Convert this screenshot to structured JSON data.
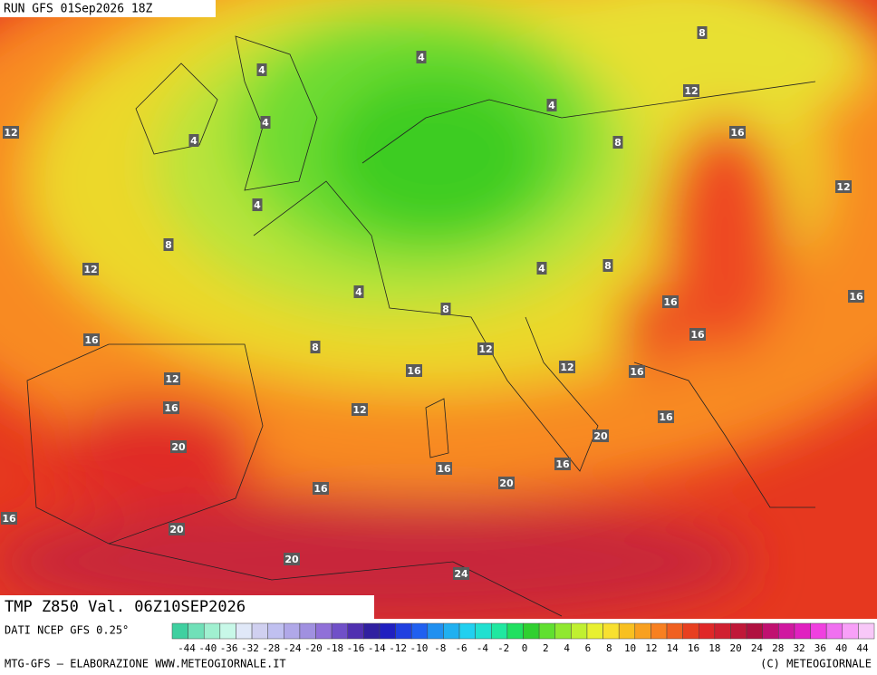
{
  "header": {
    "run": "RUN GFS 01Sep2026 18Z",
    "title": "TMP Z850 Val. 06Z10SEP2026"
  },
  "legend": {
    "source": "DATI NCEP GFS 0.25°",
    "labels": [
      "-44",
      "-40",
      "-36",
      "-32",
      "-28",
      "-24",
      "-20",
      "-18",
      "-16",
      "-14",
      "-12",
      "-10",
      "-8",
      "-6",
      "-4",
      "-2",
      "0",
      "2",
      "4",
      "6",
      "8",
      "10",
      "12",
      "14",
      "16",
      "18",
      "20",
      "24",
      "28",
      "32",
      "36",
      "40",
      "44"
    ]
  },
  "contour_labels": [
    "4",
    "4",
    "4",
    "4",
    "4",
    "4",
    "4",
    "4",
    "8",
    "12",
    "8",
    "16",
    "12",
    "12",
    "8",
    "12",
    "8",
    "8",
    "16",
    "16",
    "16",
    "8",
    "12",
    "16",
    "16",
    "12",
    "16",
    "12",
    "16",
    "12",
    "16",
    "20",
    "20",
    "16",
    "16",
    "20",
    "16",
    "16",
    "20",
    "20",
    "24"
  ],
  "footer": {
    "left": "MTG-GFS — ELABORAZIONE WWW.METEOGIORNALE.IT",
    "right": "(C) METEOGIORNALE"
  }
}
